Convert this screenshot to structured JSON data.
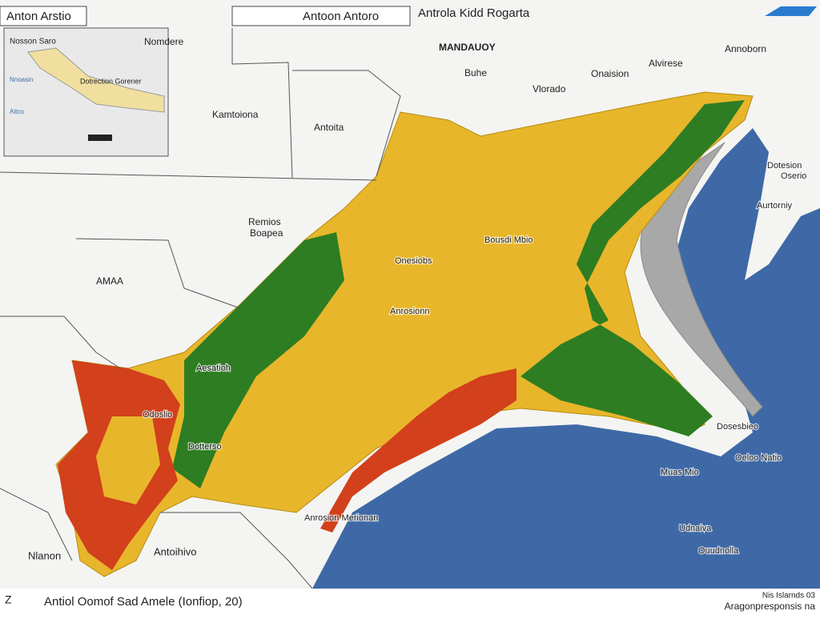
{
  "header": {
    "left_title": "Anton Arstio",
    "center_title": "Antoon Antoro",
    "right_title": "Antrola Kidd Rogarta"
  },
  "inset": {
    "labels": [
      "Nosson Saro",
      "Dotrection Gorener",
      "Nnoasin",
      "Aitco"
    ]
  },
  "labels": [
    "Nomdere",
    "MANDAUOY",
    "Buhe",
    "Onaision",
    "Vlorado",
    "Alvirese",
    "Annoborn",
    "Kamtoiona",
    "Antoita",
    "Remios",
    "Boapea",
    "AMAA",
    "Bousdi Mbio",
    "Onesiobs",
    "Anrosionn",
    "Aesatioh",
    "Odoslio",
    "Dotterso",
    "Antoihivo",
    "Nlanon",
    "Anrosion Merionan",
    "Dotesion",
    "Oserio",
    "Aurtorniy",
    "Dosesbieo",
    "Oeloo Natio",
    "Muas Mio",
    "Udnaiva",
    "Ouudnolla"
  ],
  "footer": {
    "symbol": "Z",
    "caption": "Antiol Oomof Sad Amele (Ionfiop, 20)",
    "right_top": "Nis Islarnds 03",
    "right_bottom": "Aragonpresponsis na"
  }
}
